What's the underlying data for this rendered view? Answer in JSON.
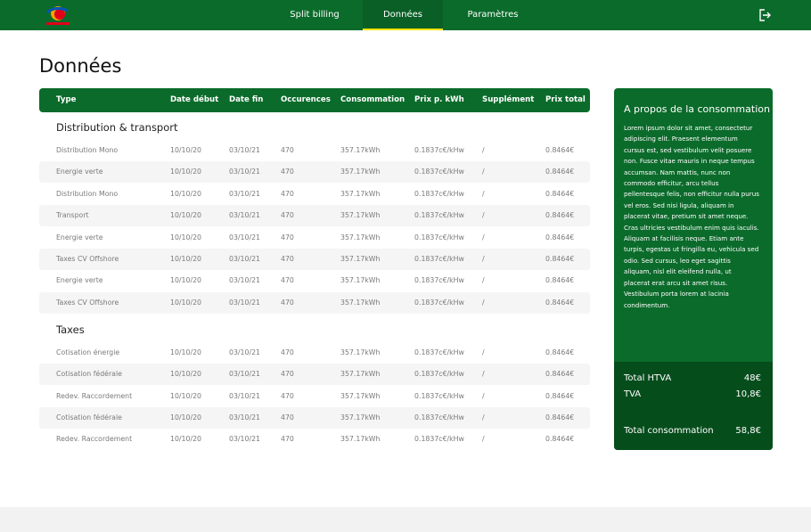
{
  "nav": {
    "items": [
      "Split billing",
      "Données",
      "Paramètres"
    ],
    "active": 1
  },
  "page_title": "Données",
  "table": {
    "headers": [
      "Type",
      "Date début",
      "Date fin",
      "Occurences",
      "Consommation",
      "Prix p. kWh",
      "Supplément",
      "Prix total"
    ],
    "sections": [
      {
        "title": "Distribution & transport",
        "rows": [
          [
            "Distribution Mono",
            "10/10/20",
            "03/10/21",
            "470",
            "357.17kWh",
            "0.1837c€/kHw",
            "/",
            "0.8464€"
          ],
          [
            "Energie verte",
            "10/10/20",
            "03/10/21",
            "470",
            "357.17kWh",
            "0.1837c€/kHw",
            "/",
            "0.8464€"
          ],
          [
            "Distribution Mono",
            "10/10/20",
            "03/10/21",
            "470",
            "357.17kWh",
            "0.1837c€/kHw",
            "/",
            "0.8464€"
          ],
          [
            "Transport",
            "10/10/20",
            "03/10/21",
            "470",
            "357.17kWh",
            "0.1837c€/kHw",
            "/",
            "0.8464€"
          ],
          [
            "Energie verte",
            "10/10/20",
            "03/10/21",
            "470",
            "357.17kWh",
            "0.1837c€/kHw",
            "/",
            "0.8464€"
          ],
          [
            "Taxes CV Offshore",
            "10/10/20",
            "03/10/21",
            "470",
            "357.17kWh",
            "0.1837c€/kHw",
            "/",
            "0.8464€"
          ],
          [
            "Energie verte",
            "10/10/20",
            "03/10/21",
            "470",
            "357.17kWh",
            "0.1837c€/kHw",
            "/",
            "0.8464€"
          ],
          [
            "Taxes CV Offshore",
            "10/10/20",
            "03/10/21",
            "470",
            "357.17kWh",
            "0.1837c€/kHw",
            "/",
            "0.8464€"
          ]
        ]
      },
      {
        "title": "Taxes",
        "rows": [
          [
            "Cotisation énergie",
            "10/10/20",
            "03/10/21",
            "470",
            "357.17kWh",
            "0.1837c€/kHw",
            "/",
            "0.8464€"
          ],
          [
            "Cotisation fédérale",
            "10/10/20",
            "03/10/21",
            "470",
            "357.17kWh",
            "0.1837c€/kHw",
            "/",
            "0.8464€"
          ],
          [
            "Redev. Raccordement",
            "10/10/20",
            "03/10/21",
            "470",
            "357.17kWh",
            "0.1837c€/kHw",
            "/",
            "0.8464€"
          ],
          [
            "Cotisation fédérale",
            "10/10/20",
            "03/10/21",
            "470",
            "357.17kWh",
            "0.1837c€/kHw",
            "/",
            "0.8464€"
          ],
          [
            "Redev. Raccordement",
            "10/10/20",
            "03/10/21",
            "470",
            "357.17kWh",
            "0.1837c€/kHw",
            "/",
            "0.8464€"
          ]
        ]
      }
    ]
  },
  "sidebar": {
    "title": "A propos de la consommation",
    "text": "Lorem ipsum dolor sit amet, consectetur adipiscing elit. Praesent elementum cursus est, sed vestibulum velit posuere non. Fusce vitae mauris in neque tempus accumsan. Nam mattis, nunc non commodo efficitur, arcu tellus pellentesque felis, non efficitur nulla purus vel eros. Sed nisi ligula, aliquam in placerat vitae, pretium sit amet neque. Cras ultricies vestibulum enim quis iaculis. Aliquam at facilisis neque. Etiam ante turpis, egestas ut fringilla eu, vehicula sed odio. Sed cursus, leo eget sagittis aliquam, nisl elit eleifend nulla, ut placerat erat arcu sit amet risus. Vestibulum porta lorem at lacinia condimentum.",
    "totals": [
      {
        "label": "Total HTVA",
        "value": "48€"
      },
      {
        "label": "TVA",
        "value": "10,8€"
      },
      {
        "label": "Total consommation",
        "value": "58,8€"
      }
    ]
  }
}
